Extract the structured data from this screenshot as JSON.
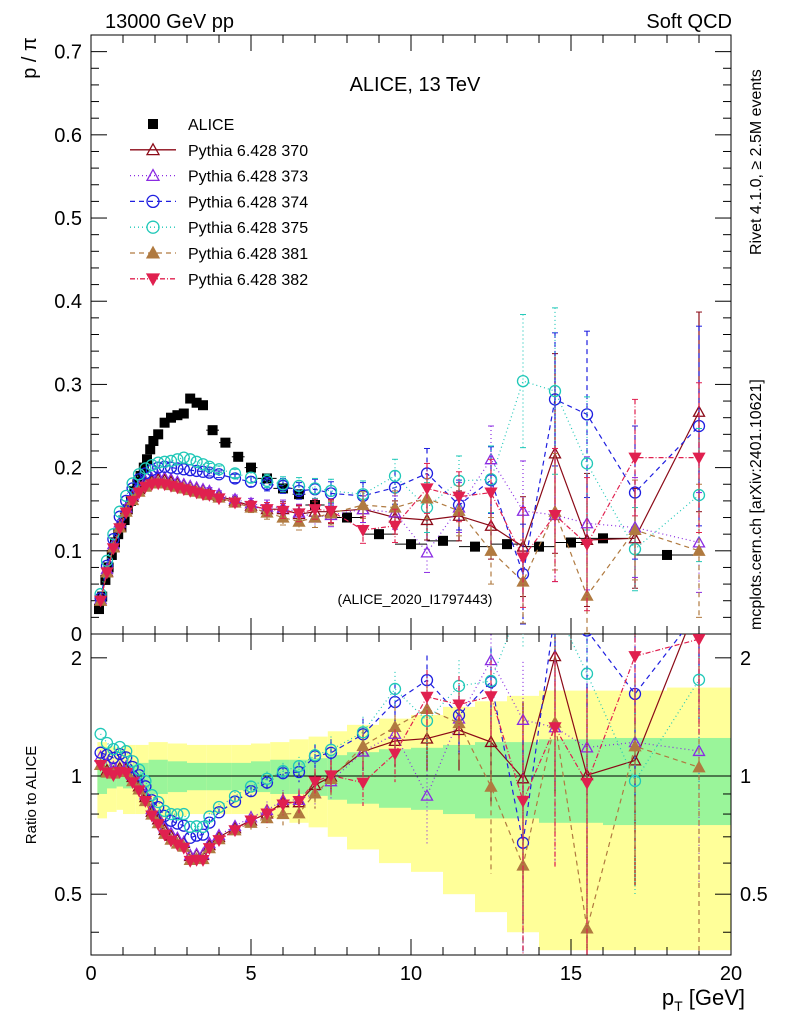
{
  "chart_data": {
    "type": "scatter",
    "header": {
      "left": "13000 GeV pp",
      "right": "Soft QCD"
    },
    "title": "ALICE, 13 TeV",
    "ylabel_main": "p / π",
    "ylabel_ratio": "Ratio to ALICE",
    "xlabel": "p",
    "xlabel_sub": "T",
    "xlabel_unit": " [GeV]",
    "side_text_top": "Rivet 4.1.0, ≥ 2.5M events",
    "side_text_bottom": "mcplots.cern.ch [arXiv:2401.10621]",
    "analysis_label": "(ALICE_2020_I1797443)",
    "xlim": [
      0,
      20
    ],
    "ylim_main": [
      0,
      0.72
    ],
    "ylim_ratio": [
      0.35,
      2.3
    ],
    "x_ticks": [
      0,
      5,
      10,
      15,
      20
    ],
    "y_ticks_main": [
      0,
      0.1,
      0.2,
      0.3,
      0.4,
      0.5,
      0.6,
      0.7
    ],
    "y_ticks_ratio": [
      0.5,
      1,
      2
    ],
    "data": {
      "name": "ALICE",
      "x": [
        0.25,
        0.35,
        0.45,
        0.55,
        0.65,
        0.75,
        0.85,
        0.95,
        1.05,
        1.15,
        1.25,
        1.35,
        1.45,
        1.55,
        1.65,
        1.75,
        1.85,
        1.95,
        2.1,
        2.3,
        2.5,
        2.7,
        2.9,
        3.1,
        3.3,
        3.5,
        3.8,
        4.2,
        4.6,
        5.0,
        5.5,
        6.0,
        6.5,
        7.0,
        8.0,
        9.0,
        10.0,
        11.0,
        12.0,
        13.0,
        14.0,
        15.0,
        16.0,
        18.0
      ],
      "y": [
        0.03,
        0.045,
        0.065,
        0.08,
        0.095,
        0.11,
        0.12,
        0.128,
        0.137,
        0.15,
        0.16,
        0.172,
        0.18,
        0.19,
        0.2,
        0.21,
        0.222,
        0.232,
        0.24,
        0.254,
        0.26,
        0.263,
        0.265,
        0.283,
        0.278,
        0.275,
        0.245,
        0.23,
        0.213,
        0.2,
        0.187,
        0.175,
        0.168,
        0.155,
        0.14,
        0.12,
        0.108,
        0.112,
        0.105,
        0.108,
        0.105,
        0.11,
        0.115,
        0.095
      ],
      "xerr": [
        0.05,
        0.05,
        0.05,
        0.05,
        0.05,
        0.05,
        0.05,
        0.05,
        0.05,
        0.05,
        0.05,
        0.05,
        0.05,
        0.05,
        0.05,
        0.05,
        0.05,
        0.05,
        0.1,
        0.1,
        0.1,
        0.1,
        0.1,
        0.1,
        0.1,
        0.1,
        0.2,
        0.2,
        0.2,
        0.2,
        0.3,
        0.3,
        0.2,
        0.3,
        0.5,
        0.5,
        0.5,
        0.5,
        0.5,
        0.5,
        0.5,
        0.5,
        1.0,
        1.0
      ]
    },
    "band_edges": [
      0.2,
      0.5,
      0.8,
      1.0,
      1.4,
      1.8,
      2.4,
      3.0,
      3.6,
      4.4,
      5.0,
      5.6,
      6.2,
      6.8,
      7.4,
      8.0,
      9.0,
      10.0,
      11.0,
      12.0,
      13.0,
      14.0,
      16.0,
      18.0,
      20.0
    ],
    "band_stat": [
      0.1,
      0.07,
      0.06,
      0.07,
      0.08,
      0.1,
      0.09,
      0.08,
      0.08,
      0.08,
      0.09,
      0.1,
      0.1,
      0.11,
      0.13,
      0.15,
      0.17,
      0.18,
      0.2,
      0.22,
      0.22,
      0.24,
      0.25,
      0.25
    ],
    "band_total": [
      0.22,
      0.19,
      0.18,
      0.2,
      0.2,
      0.22,
      0.21,
      0.2,
      0.2,
      0.2,
      0.21,
      0.22,
      0.24,
      0.26,
      0.3,
      0.35,
      0.4,
      0.43,
      0.5,
      0.55,
      0.6,
      0.65,
      0.65,
      0.68
    ],
    "series": [
      {
        "name": "Pythia 6.428 370",
        "color": "#8b0a17",
        "marker": "triangle-open",
        "dash": "none",
        "x": [
          0.3,
          0.5,
          0.7,
          0.9,
          1.1,
          1.3,
          1.5,
          1.7,
          1.9,
          2.1,
          2.3,
          2.5,
          2.7,
          2.9,
          3.1,
          3.3,
          3.5,
          3.7,
          4.0,
          4.5,
          5.0,
          5.5,
          6.0,
          6.5,
          7.0,
          7.5,
          8.5,
          9.5,
          10.5,
          11.5,
          12.5,
          13.5,
          14.5,
          15.5,
          17.0,
          19.0
        ],
        "y": [
          0.04,
          0.075,
          0.105,
          0.13,
          0.15,
          0.165,
          0.174,
          0.181,
          0.184,
          0.186,
          0.185,
          0.183,
          0.181,
          0.179,
          0.177,
          0.175,
          0.173,
          0.17,
          0.166,
          0.16,
          0.154,
          0.15,
          0.15,
          0.144,
          0.147,
          0.147,
          0.15,
          0.14,
          0.137,
          0.142,
          0.13,
          0.105,
          0.217,
          0.113,
          0.115,
          0.267
        ],
        "err": [
          0.002,
          0.002,
          0.002,
          0.002,
          0.002,
          0.002,
          0.002,
          0.002,
          0.002,
          0.002,
          0.002,
          0.002,
          0.002,
          0.003,
          0.003,
          0.003,
          0.003,
          0.004,
          0.004,
          0.005,
          0.006,
          0.008,
          0.009,
          0.01,
          0.012,
          0.014,
          0.016,
          0.02,
          0.024,
          0.03,
          0.04,
          0.06,
          0.12,
          0.08,
          0.06,
          0.12
        ]
      },
      {
        "name": "Pythia 6.428 373",
        "color": "#8a2be2",
        "marker": "triangle-open",
        "dash": "1,3",
        "x": [
          0.3,
          0.5,
          0.7,
          0.9,
          1.1,
          1.3,
          1.5,
          1.7,
          1.9,
          2.1,
          2.3,
          2.5,
          2.7,
          2.9,
          3.1,
          3.3,
          3.5,
          3.7,
          4.0,
          4.5,
          5.0,
          5.5,
          6.0,
          6.5,
          7.0,
          7.5,
          8.5,
          9.5,
          10.5,
          11.5,
          12.5,
          13.5,
          14.5,
          15.5,
          17.0,
          19.0
        ],
        "y": [
          0.042,
          0.078,
          0.108,
          0.134,
          0.152,
          0.167,
          0.178,
          0.184,
          0.187,
          0.189,
          0.188,
          0.186,
          0.183,
          0.18,
          0.178,
          0.176,
          0.174,
          0.172,
          0.168,
          0.162,
          0.157,
          0.153,
          0.152,
          0.146,
          0.14,
          0.143,
          0.15,
          0.146,
          0.098,
          0.152,
          0.21,
          0.148,
          0.143,
          0.133,
          0.128,
          0.11
        ],
        "err": [
          0.002,
          0.002,
          0.002,
          0.002,
          0.002,
          0.002,
          0.002,
          0.002,
          0.002,
          0.002,
          0.002,
          0.002,
          0.002,
          0.003,
          0.003,
          0.003,
          0.003,
          0.004,
          0.004,
          0.005,
          0.006,
          0.008,
          0.009,
          0.01,
          0.012,
          0.014,
          0.016,
          0.02,
          0.024,
          0.03,
          0.04,
          0.06,
          0.08,
          0.08,
          0.06,
          0.06
        ]
      },
      {
        "name": "Pythia 6.428 374",
        "color": "#1f1fe0",
        "marker": "circle-open",
        "dash": "5,4",
        "x": [
          0.3,
          0.5,
          0.7,
          0.9,
          1.1,
          1.3,
          1.5,
          1.7,
          1.9,
          2.1,
          2.3,
          2.5,
          2.7,
          2.9,
          3.1,
          3.3,
          3.5,
          3.7,
          4.0,
          4.5,
          5.0,
          5.5,
          6.0,
          6.5,
          7.0,
          7.5,
          8.5,
          9.5,
          10.5,
          11.5,
          12.5,
          13.5,
          14.5,
          15.5,
          17.0,
          19.0
        ],
        "y": [
          0.043,
          0.082,
          0.114,
          0.141,
          0.16,
          0.175,
          0.186,
          0.193,
          0.197,
          0.2,
          0.201,
          0.2,
          0.199,
          0.198,
          0.197,
          0.196,
          0.195,
          0.194,
          0.192,
          0.187,
          0.183,
          0.18,
          0.178,
          0.172,
          0.174,
          0.169,
          0.166,
          0.176,
          0.193,
          0.155,
          0.185,
          0.072,
          0.282,
          0.264,
          0.17,
          0.25
        ],
        "err": [
          0.002,
          0.002,
          0.002,
          0.002,
          0.002,
          0.002,
          0.002,
          0.002,
          0.002,
          0.002,
          0.002,
          0.002,
          0.002,
          0.003,
          0.003,
          0.003,
          0.003,
          0.004,
          0.004,
          0.005,
          0.006,
          0.008,
          0.009,
          0.01,
          0.012,
          0.014,
          0.016,
          0.02,
          0.03,
          0.03,
          0.04,
          0.06,
          0.08,
          0.1,
          0.08,
          0.12
        ]
      },
      {
        "name": "Pythia 6.428 375",
        "color": "#20c8b8",
        "marker": "circle-open",
        "dash": "1,3",
        "x": [
          0.3,
          0.5,
          0.7,
          0.9,
          1.1,
          1.3,
          1.5,
          1.7,
          1.9,
          2.1,
          2.3,
          2.5,
          2.7,
          2.9,
          3.1,
          3.3,
          3.5,
          3.7,
          4.0,
          4.5,
          5.0,
          5.5,
          6.0,
          6.5,
          7.0,
          7.5,
          8.5,
          9.5,
          10.5,
          11.5,
          12.5,
          13.5,
          14.5,
          15.5,
          17.0,
          19.0
        ],
        "y": [
          0.048,
          0.088,
          0.12,
          0.147,
          0.166,
          0.181,
          0.192,
          0.199,
          0.203,
          0.206,
          0.207,
          0.208,
          0.21,
          0.212,
          0.21,
          0.207,
          0.204,
          0.201,
          0.198,
          0.193,
          0.188,
          0.184,
          0.18,
          0.178,
          0.175,
          0.172,
          0.168,
          0.19,
          0.152,
          0.184,
          0.186,
          0.304,
          0.292,
          0.205,
          0.102,
          0.167
        ],
        "err": [
          0.002,
          0.002,
          0.002,
          0.002,
          0.002,
          0.002,
          0.002,
          0.002,
          0.002,
          0.002,
          0.002,
          0.002,
          0.002,
          0.003,
          0.003,
          0.003,
          0.003,
          0.004,
          0.004,
          0.005,
          0.006,
          0.008,
          0.009,
          0.01,
          0.012,
          0.014,
          0.016,
          0.02,
          0.03,
          0.03,
          0.04,
          0.08,
          0.1,
          0.08,
          0.05,
          0.08
        ]
      },
      {
        "name": "Pythia 6.428 381",
        "color": "#b07a40",
        "marker": "triangle-filled",
        "dash": "5,4",
        "x": [
          0.3,
          0.5,
          0.7,
          0.9,
          1.1,
          1.3,
          1.5,
          1.7,
          1.9,
          2.1,
          2.3,
          2.5,
          2.7,
          2.9,
          3.1,
          3.3,
          3.5,
          3.7,
          4.0,
          4.5,
          5.0,
          5.5,
          6.0,
          6.5,
          7.0,
          7.5,
          8.5,
          9.5,
          10.5,
          11.5,
          12.5,
          13.5,
          14.5,
          15.5,
          17.0,
          19.0
        ],
        "y": [
          0.04,
          0.074,
          0.104,
          0.128,
          0.147,
          0.161,
          0.171,
          0.177,
          0.181,
          0.182,
          0.181,
          0.179,
          0.177,
          0.175,
          0.173,
          0.171,
          0.169,
          0.167,
          0.164,
          0.158,
          0.152,
          0.146,
          0.14,
          0.135,
          0.14,
          0.145,
          0.155,
          0.152,
          0.163,
          0.148,
          0.1,
          0.063,
          0.147,
          0.046,
          0.125,
          0.1
        ],
        "err": [
          0.002,
          0.002,
          0.002,
          0.002,
          0.002,
          0.002,
          0.002,
          0.002,
          0.002,
          0.002,
          0.002,
          0.002,
          0.002,
          0.003,
          0.003,
          0.003,
          0.003,
          0.004,
          0.004,
          0.005,
          0.006,
          0.008,
          0.009,
          0.01,
          0.012,
          0.014,
          0.016,
          0.02,
          0.024,
          0.03,
          0.04,
          0.05,
          0.07,
          0.06,
          0.06,
          0.08
        ]
      },
      {
        "name": "Pythia 6.428 382",
        "color": "#e0204f",
        "marker": "triangle-down-filled",
        "dash": "5,2,1,2",
        "x": [
          0.3,
          0.5,
          0.7,
          0.9,
          1.1,
          1.3,
          1.5,
          1.7,
          1.9,
          2.1,
          2.3,
          2.5,
          2.7,
          2.9,
          3.1,
          3.3,
          3.5,
          3.7,
          4.0,
          4.5,
          5.0,
          5.5,
          6.0,
          6.5,
          7.0,
          7.5,
          8.5,
          9.5,
          10.5,
          11.5,
          12.5,
          13.5,
          14.5,
          15.5,
          17.0,
          19.0
        ],
        "y": [
          0.04,
          0.074,
          0.103,
          0.127,
          0.146,
          0.16,
          0.17,
          0.177,
          0.18,
          0.181,
          0.18,
          0.178,
          0.176,
          0.174,
          0.172,
          0.17,
          0.168,
          0.167,
          0.163,
          0.158,
          0.154,
          0.15,
          0.148,
          0.145,
          0.15,
          0.148,
          0.125,
          0.13,
          0.175,
          0.165,
          0.17,
          0.092,
          0.143,
          0.108,
          0.212,
          0.212
        ],
        "err": [
          0.002,
          0.002,
          0.002,
          0.002,
          0.002,
          0.002,
          0.002,
          0.002,
          0.002,
          0.002,
          0.002,
          0.002,
          0.002,
          0.003,
          0.003,
          0.003,
          0.003,
          0.004,
          0.004,
          0.005,
          0.006,
          0.008,
          0.009,
          0.01,
          0.012,
          0.014,
          0.016,
          0.02,
          0.03,
          0.03,
          0.04,
          0.06,
          0.08,
          0.08,
          0.07,
          0.09
        ]
      }
    ]
  }
}
